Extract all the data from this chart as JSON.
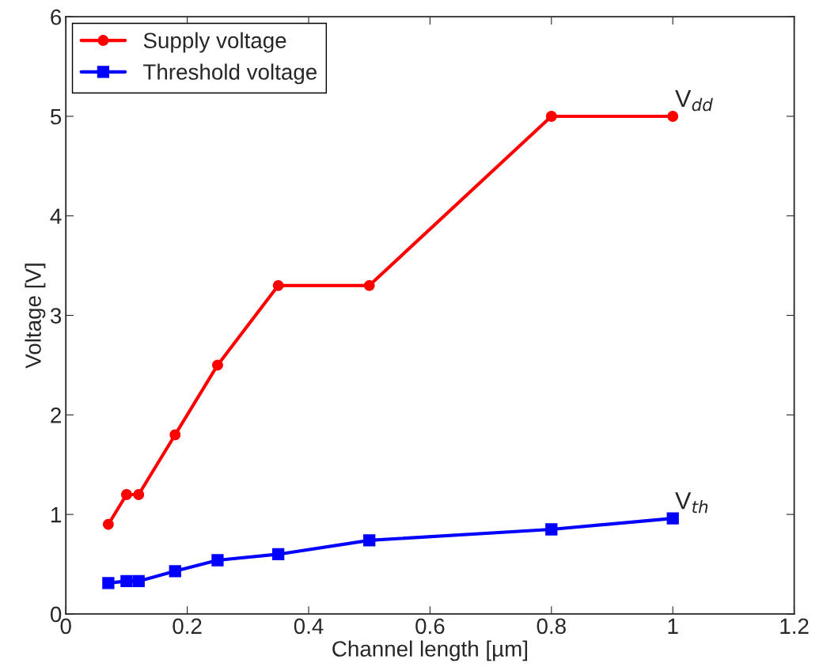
{
  "chart_data": {
    "type": "line",
    "xlabel": "Channel length [µm]",
    "ylabel": "Voltage [V]",
    "xlim": [
      0,
      1.2
    ],
    "xticks": [
      0,
      0.2,
      0.4,
      0.6,
      0.8,
      1,
      1.2
    ],
    "ylim": [
      0,
      6
    ],
    "yticks": [
      0,
      1,
      2,
      3,
      4,
      5,
      6
    ],
    "grid": false,
    "legend": "top left",
    "series": [
      {
        "name": "Supply voltage",
        "color": "#ff0000",
        "marker": "circle",
        "x": [
          0.07,
          0.1,
          0.12,
          0.18,
          0.25,
          0.35,
          0.5,
          0.8,
          1.0
        ],
        "values": [
          0.9,
          1.2,
          1.2,
          1.8,
          2.5,
          3.3,
          3.3,
          5.0,
          5.0
        ]
      },
      {
        "name": "Threshold voltage",
        "color": "#0000ff",
        "marker": "square",
        "x": [
          0.07,
          0.1,
          0.12,
          0.18,
          0.25,
          0.35,
          0.5,
          0.8,
          1.0
        ],
        "values": [
          0.31,
          0.33,
          0.33,
          0.43,
          0.54,
          0.6,
          0.74,
          0.85,
          0.96
        ]
      }
    ],
    "annotations": [
      {
        "text": "V$_{dd}$",
        "x": 1.0,
        "y": 5.0
      },
      {
        "text": "V$_{th}$",
        "x": 1.0,
        "y": 0.96
      }
    ]
  }
}
